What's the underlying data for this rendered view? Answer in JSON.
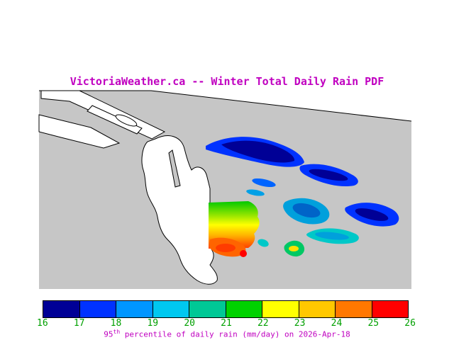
{
  "title": "VictoriaWeather.ca -- Winter Total Daily Rain PDF",
  "caption": {
    "prefix": "95",
    "sup": "th",
    "rest": " percentile of daily rain (mm/day) on 2026-Apr-18"
  },
  "colors": {
    "accent": "#c000c0",
    "tick": "#00a000",
    "sea": "#c6c6c6",
    "land": "#ffffff",
    "outline": "#000000"
  },
  "colorbar": {
    "ticks": [
      "16",
      "17",
      "18",
      "19",
      "20",
      "21",
      "22",
      "23",
      "24",
      "25",
      "26"
    ],
    "segments": [
      "#000096",
      "#0032ff",
      "#0096ff",
      "#00c8f0",
      "#00c896",
      "#00d200",
      "#ffff00",
      "#ffc800",
      "#ff7800",
      "#ff0000"
    ]
  },
  "chart_data": {
    "type": "heatmap",
    "title": "VictoriaWeather.ca -- Winter Total Daily Rain PDF",
    "colorbar_label": "95th percentile of daily rain (mm/day)",
    "date": "2026-Apr-18",
    "units": "mm/day",
    "scale_min": 16,
    "scale_max": 26,
    "scale_ticks": [
      16,
      17,
      18,
      19,
      20,
      21,
      22,
      23,
      24,
      25,
      26
    ],
    "legend_position": "bottom",
    "regions": [
      {
        "area": "northeast straits (elongated bands)",
        "value_range": [
          16,
          18
        ]
      },
      {
        "area": "east-central strait blobs",
        "value_range": [
          18,
          20
        ]
      },
      {
        "area": "rectangle east of peninsula (gradient north to south)",
        "value_range": [
          21,
          26
        ]
      },
      {
        "area": "small southern blobs",
        "value_range": [
          19,
          26
        ]
      }
    ]
  }
}
